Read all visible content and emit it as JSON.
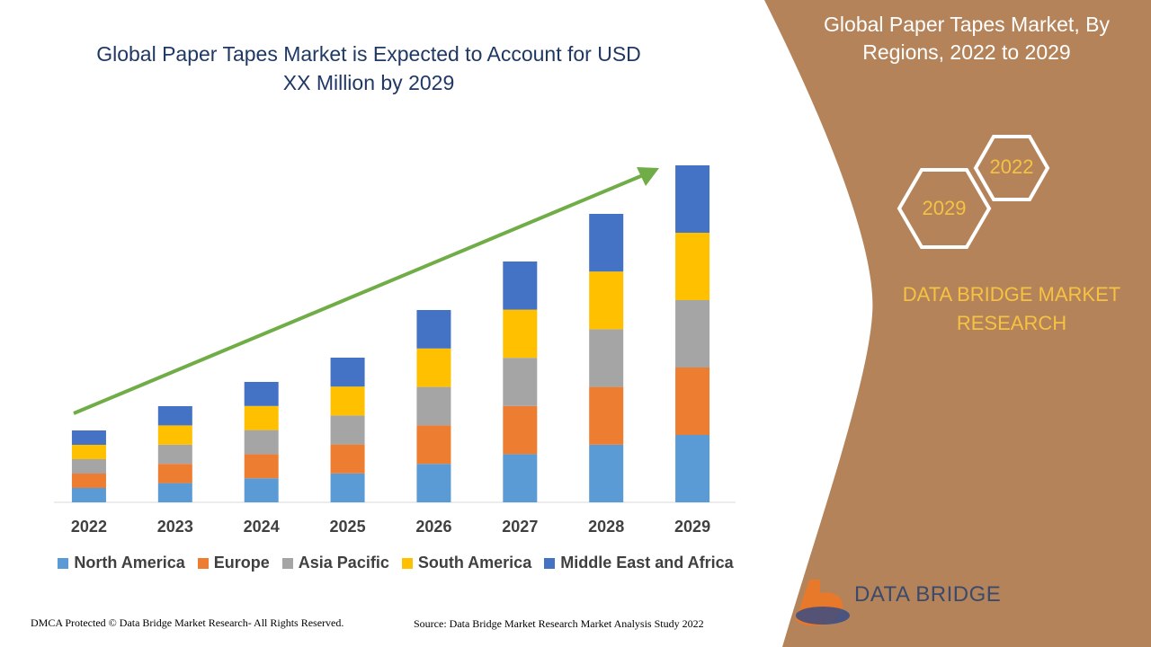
{
  "chart_data": {
    "type": "stacked_bar",
    "title": "Global Paper Tapes Market is Expected to Account for USD XX Million by 2029",
    "categories": [
      "2022",
      "2023",
      "2024",
      "2025",
      "2026",
      "2027",
      "2028",
      "2029"
    ],
    "series": [
      {
        "name": "North America",
        "color": "#5b9bd5",
        "values": [
          16,
          21.4,
          26.8,
          32.2,
          42.8,
          53.6,
          64.2,
          75
        ]
      },
      {
        "name": "Europe",
        "color": "#ed7d31",
        "values": [
          16,
          21.4,
          26.8,
          32.2,
          42.8,
          53.6,
          64.2,
          75
        ]
      },
      {
        "name": "Asia Pacific",
        "color": "#a5a5a5",
        "values": [
          16,
          21.4,
          26.8,
          32.2,
          42.8,
          53.6,
          64.2,
          75
        ]
      },
      {
        "name": "South America",
        "color": "#ffc000",
        "values": [
          16,
          21.4,
          26.8,
          32.2,
          42.8,
          53.6,
          64.2,
          75
        ]
      },
      {
        "name": "Middle East and Africa",
        "color": "#4472c4",
        "values": [
          16,
          21.4,
          26.8,
          32.2,
          42.8,
          53.6,
          64.2,
          75
        ]
      }
    ]
  },
  "panel": {
    "title": "Global Paper Tapes Market, By Regions, 2022 to 2029",
    "hex_labels": [
      "2022",
      "2029"
    ],
    "brand": "DATA BRIDGE MARKET RESEARCH",
    "logo": "DATA BRIDGE"
  },
  "footer": {
    "copyright": "DMCA Protected © Data Bridge Market Research- All Rights Reserved.",
    "source": "Source: Data Bridge Market Research Market Analysis Study 2022"
  }
}
